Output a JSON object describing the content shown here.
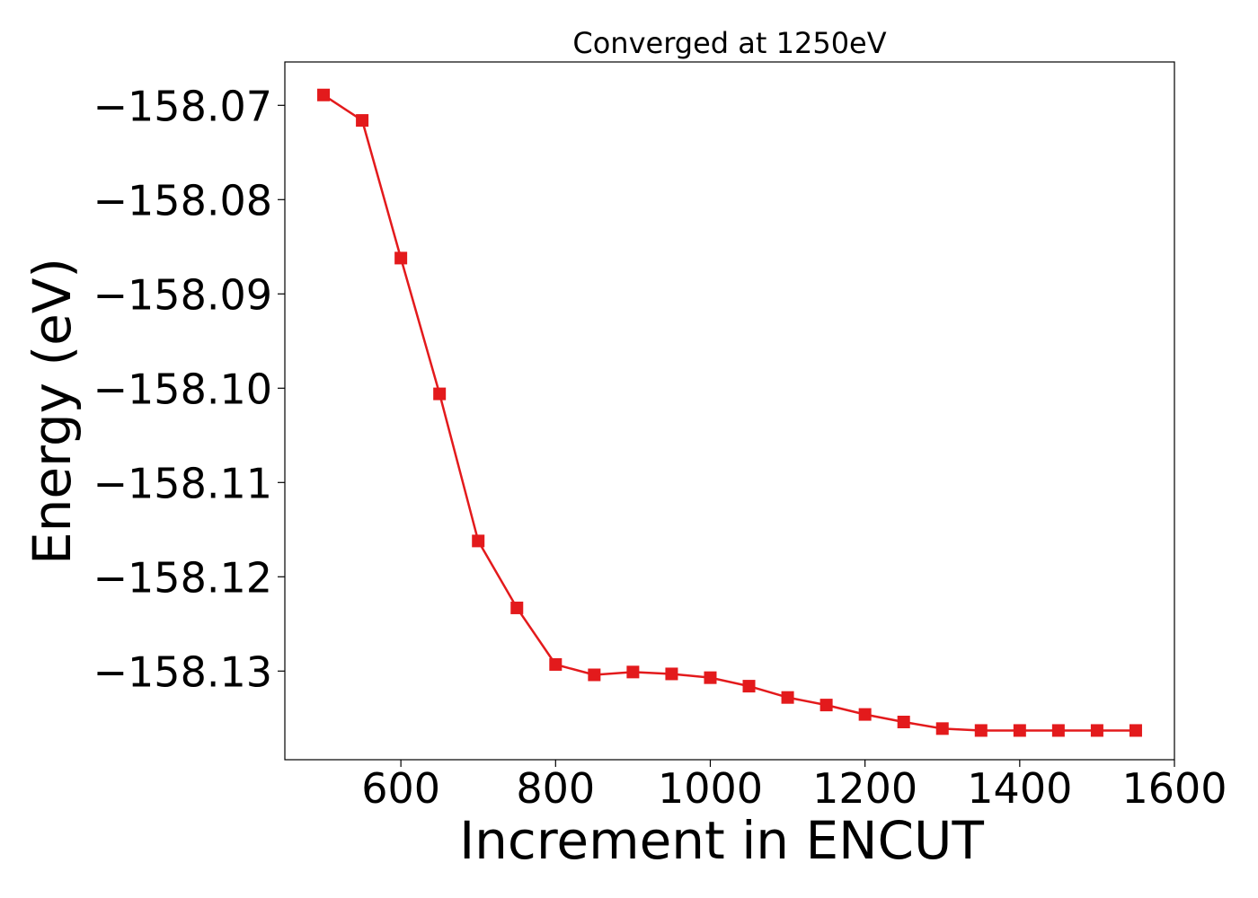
{
  "chart_data": {
    "type": "line",
    "title": "Converged at 1250eV",
    "xlabel": "Increment in ENCUT",
    "ylabel": "Energy (eV)",
    "xlim": [
      450,
      1600
    ],
    "ylim": [
      -158.1394,
      -158.0654
    ],
    "grid": false,
    "x_ticks": [
      600,
      800,
      1000,
      1200,
      1400,
      1600
    ],
    "x_tick_labels": [
      "600",
      "800",
      "1000",
      "1200",
      "1400",
      "1600"
    ],
    "y_ticks": [
      -158.07,
      -158.08,
      -158.09,
      -158.1,
      -158.11,
      -158.12,
      -158.13
    ],
    "y_tick_labels": [
      "−158.07",
      "−158.08",
      "−158.09",
      "−158.10",
      "−158.11",
      "−158.12",
      "−158.13"
    ],
    "series": [
      {
        "color": "#e31a1c",
        "marker": "square",
        "x": [
          500,
          550,
          600,
          650,
          700,
          750,
          800,
          850,
          900,
          950,
          1000,
          1050,
          1100,
          1150,
          1200,
          1250,
          1300,
          1350,
          1400,
          1450,
          1500,
          1550
        ],
        "y": [
          -158.0689,
          -158.0716,
          -158.0862,
          -158.1006,
          -158.1162,
          -158.1233,
          -158.1293,
          -158.1304,
          -158.1301,
          -158.1303,
          -158.1307,
          -158.1316,
          -158.1328,
          -158.1336,
          -158.1346,
          -158.1354,
          -158.1361,
          -158.1363,
          -158.1363,
          -158.1363,
          -158.1363,
          -158.1363
        ]
      }
    ]
  }
}
